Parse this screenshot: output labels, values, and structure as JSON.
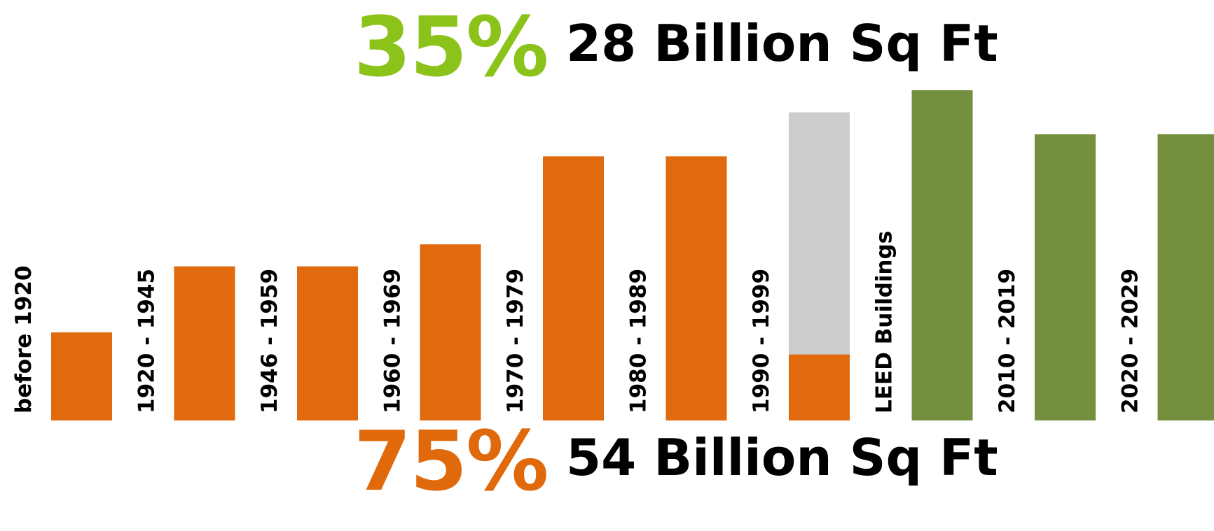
{
  "top_stat": {
    "percent": "35%",
    "label": "28 Billion Sq Ft",
    "percent_color": "#8cc31b"
  },
  "bottom_stat": {
    "percent": "75%",
    "label": "54 Billion Sq Ft",
    "percent_color": "#e0690c"
  },
  "colors": {
    "existing": "#e06a0d",
    "leed": "#cccccc",
    "future": "#748f3d",
    "label": "#000000"
  },
  "chart_data": {
    "type": "bar",
    "title": "",
    "xlabel": "",
    "ylabel": "",
    "categories": [
      "before 1920",
      "1920 - 1945",
      "1946 - 1959",
      "1960 - 1969",
      "1970 - 1979",
      "1980 - 1989",
      "1990 - 1999",
      "LEED Buildings",
      "2010 - 2019",
      "2020 - 2029"
    ],
    "bars": [
      {
        "label": "before 1920",
        "value": 2.0,
        "color": "existing"
      },
      {
        "label": "1920 - 1945",
        "value": 3.5,
        "color": "existing"
      },
      {
        "label": "1946 - 1959",
        "value": 3.5,
        "color": "existing"
      },
      {
        "label": "1960 - 1969",
        "value": 4.0,
        "color": "existing"
      },
      {
        "label": "1970 - 1979",
        "value": 6.0,
        "color": "existing"
      },
      {
        "label": "1980 - 1989",
        "value": 6.0,
        "color": "existing"
      },
      {
        "label": "1990 - 1999",
        "value": 7.0,
        "segments": [
          {
            "value": 1.5,
            "color": "existing"
          },
          {
            "value": 5.5,
            "color": "leed"
          }
        ]
      },
      {
        "label": "LEED Buildings",
        "value": 7.5,
        "color": "future"
      },
      {
        "label": "2010 - 2019",
        "value": 6.5,
        "color": "future"
      },
      {
        "label": "2020 - 2029",
        "value": 6.5,
        "color": "future"
      }
    ],
    "ylim": [
      0,
      7.5
    ],
    "grid": false,
    "legend": "none"
  }
}
